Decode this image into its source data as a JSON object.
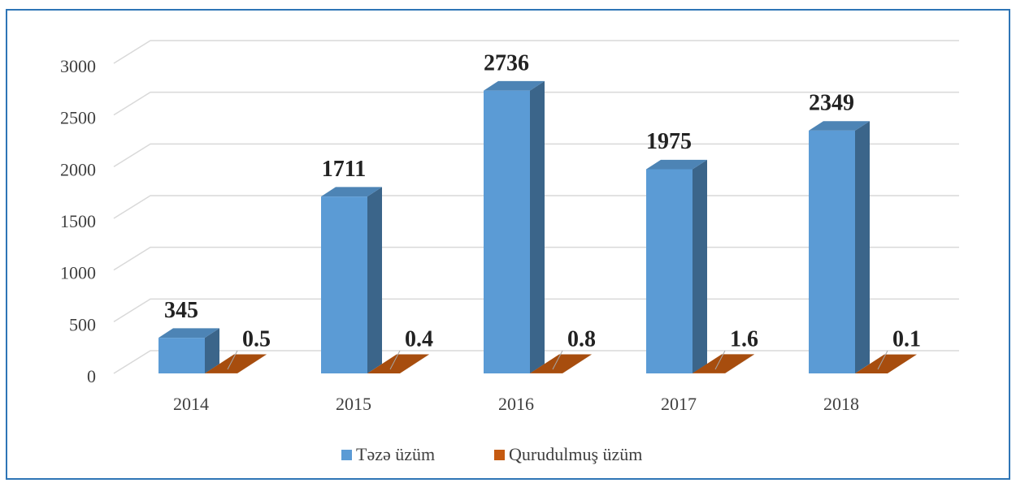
{
  "chart_data": {
    "type": "bar3d",
    "categories": [
      "2014",
      "2015",
      "2016",
      "2017",
      "2018"
    ],
    "series": [
      {
        "name": "Təzə üzüm",
        "color": "#5b9bd5",
        "values": [
          345,
          1711,
          2736,
          1975,
          2349
        ]
      },
      {
        "name": "Qurudulmuş üzüm",
        "color": "#c55a11",
        "values": [
          0.5,
          0.4,
          0.8,
          1.6,
          0.1
        ]
      }
    ],
    "ylim": [
      0,
      3000
    ],
    "yticks": [
      0,
      500,
      1000,
      1500,
      2000,
      2500,
      3000
    ],
    "grid": true,
    "legend": "bottom"
  }
}
